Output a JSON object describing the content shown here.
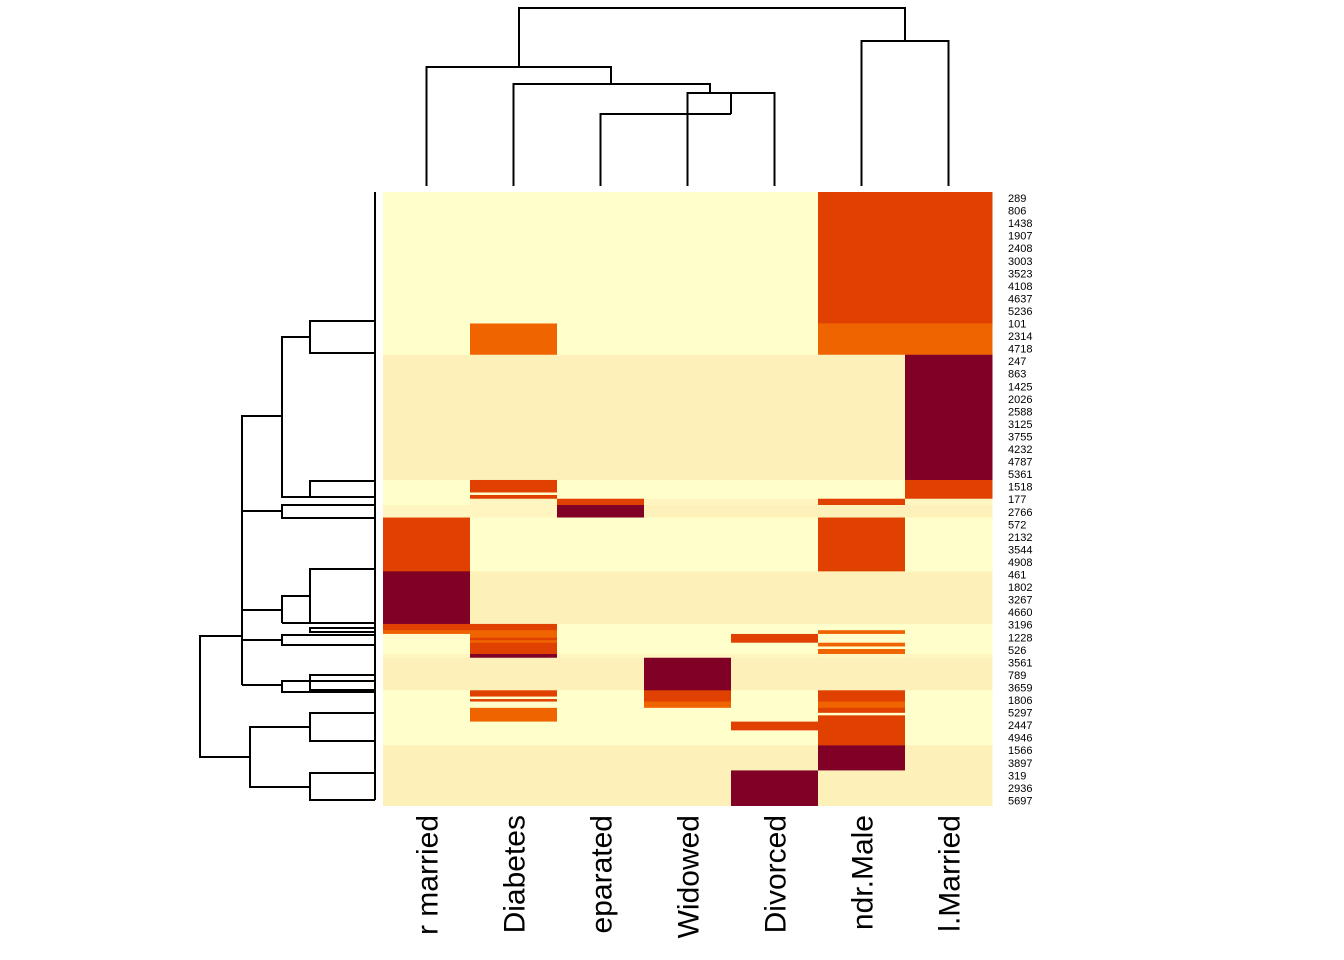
{
  "chart_data": {
    "type": "heatmap",
    "title": "",
    "xlabel": "",
    "ylabel": "",
    "columns": [
      "r married",
      "Diabetes",
      "eparated",
      "Widowed",
      "Divorced",
      "ndr.Male",
      "l.Married"
    ],
    "row_labels": [
      "289",
      "806",
      "1438",
      "1907",
      "2408",
      "3003",
      "3523",
      "4108",
      "4637",
      "5236",
      "101",
      "2314",
      "4718",
      "247",
      "863",
      "1425",
      "2026",
      "2588",
      "3125",
      "3755",
      "4232",
      "4787",
      "5361",
      "1518",
      "177",
      "2766",
      "572",
      "2132",
      "3544",
      "4908",
      "461",
      "1802",
      "3267",
      "4660",
      "3196",
      "1228",
      "526",
      "3561",
      "789",
      "3659",
      "1806",
      "5297",
      "2447",
      "4946",
      "1566",
      "3897",
      "319",
      "2936",
      "5697"
    ],
    "color_levels": [
      "#FFFFCC",
      "#FFF5C0",
      "#FDF0B8",
      "#F06400",
      "#E04000",
      "#800026"
    ],
    "blocks": [
      {
        "rows": [
          0,
          10.5
        ],
        "values": [
          0,
          0,
          0,
          0,
          0,
          4,
          4
        ]
      },
      {
        "rows": [
          10.5,
          13.0
        ],
        "values": [
          0,
          3,
          0,
          0,
          0,
          3,
          3
        ]
      },
      {
        "rows": [
          13.0,
          23.0
        ],
        "values": [
          2,
          2,
          2,
          2,
          2,
          2,
          5
        ]
      },
      {
        "rows": [
          23.0,
          24.5
        ],
        "values": [
          0,
          4,
          0,
          0,
          0,
          0,
          4
        ]
      },
      {
        "rows": [
          24.5,
          25.0
        ],
        "values": [
          0,
          1,
          4,
          1,
          1,
          4,
          1
        ]
      },
      {
        "rows": [
          25.0,
          26.0
        ],
        "values": [
          1,
          1,
          5,
          2,
          2,
          2,
          2
        ]
      },
      {
        "rows": [
          26.0,
          30.3
        ],
        "values": [
          4,
          0,
          0,
          0,
          0,
          4,
          0
        ]
      },
      {
        "rows": [
          30.3,
          34.5
        ],
        "values": [
          5,
          2,
          2,
          2,
          2,
          2,
          2
        ]
      },
      {
        "rows": [
          34.5,
          35.0
        ],
        "values": [
          4,
          4,
          0,
          0,
          0,
          0,
          0
        ]
      },
      {
        "rows": [
          35.0,
          35.3
        ],
        "values": [
          3,
          3,
          0,
          0,
          0,
          3,
          0
        ]
      },
      {
        "rows": [
          35.3,
          36.0
        ],
        "values": [
          0,
          3,
          0,
          0,
          4,
          0,
          0
        ]
      },
      {
        "rows": [
          36.0,
          36.9
        ],
        "values": [
          0,
          4,
          0,
          0,
          0,
          3,
          0
        ]
      },
      {
        "rows": [
          36.9,
          37.2
        ],
        "values": [
          1,
          5,
          1,
          1,
          1,
          1,
          1
        ]
      },
      {
        "rows": [
          37.2,
          39.8
        ],
        "values": [
          2,
          2,
          2,
          5,
          2,
          2,
          2
        ]
      },
      {
        "rows": [
          39.8,
          40.7
        ],
        "values": [
          0,
          4,
          0,
          4,
          0,
          4,
          0
        ]
      },
      {
        "rows": [
          40.7,
          41.2
        ],
        "values": [
          0,
          0,
          0,
          3,
          0,
          3,
          0
        ]
      },
      {
        "rows": [
          41.2,
          42.3
        ],
        "values": [
          0,
          3,
          0,
          0,
          0,
          4,
          0
        ]
      },
      {
        "rows": [
          42.3,
          43.0
        ],
        "values": [
          0,
          0,
          0,
          0,
          4,
          4,
          0
        ]
      },
      {
        "rows": [
          43.0,
          44.2
        ],
        "values": [
          0,
          0,
          0,
          0,
          0,
          4,
          0
        ]
      },
      {
        "rows": [
          44.2,
          46.2
        ],
        "values": [
          2,
          2,
          2,
          2,
          2,
          5,
          2
        ]
      },
      {
        "rows": [
          46.2,
          49.0
        ],
        "values": [
          2,
          2,
          2,
          2,
          5,
          2,
          2
        ]
      }
    ],
    "stripes": [
      {
        "row": 24.0,
        "col": 1,
        "value": 0
      },
      {
        "row": 40.3,
        "col": 1,
        "value": 0
      },
      {
        "row": 41.6,
        "col": 5,
        "value": 0
      },
      {
        "row": 36.3,
        "col": 5,
        "value": 0
      },
      {
        "row": 35.6,
        "col": 1,
        "value": 4
      }
    ],
    "col_dendrogram": "((r married,(Diabetes,(eparated,(Widowed,Divorced)))),(ndr.Male,l.Married))",
    "row_dendrogram": "hierarchical clustering of 49 rows",
    "legend": "none",
    "grid": false
  }
}
